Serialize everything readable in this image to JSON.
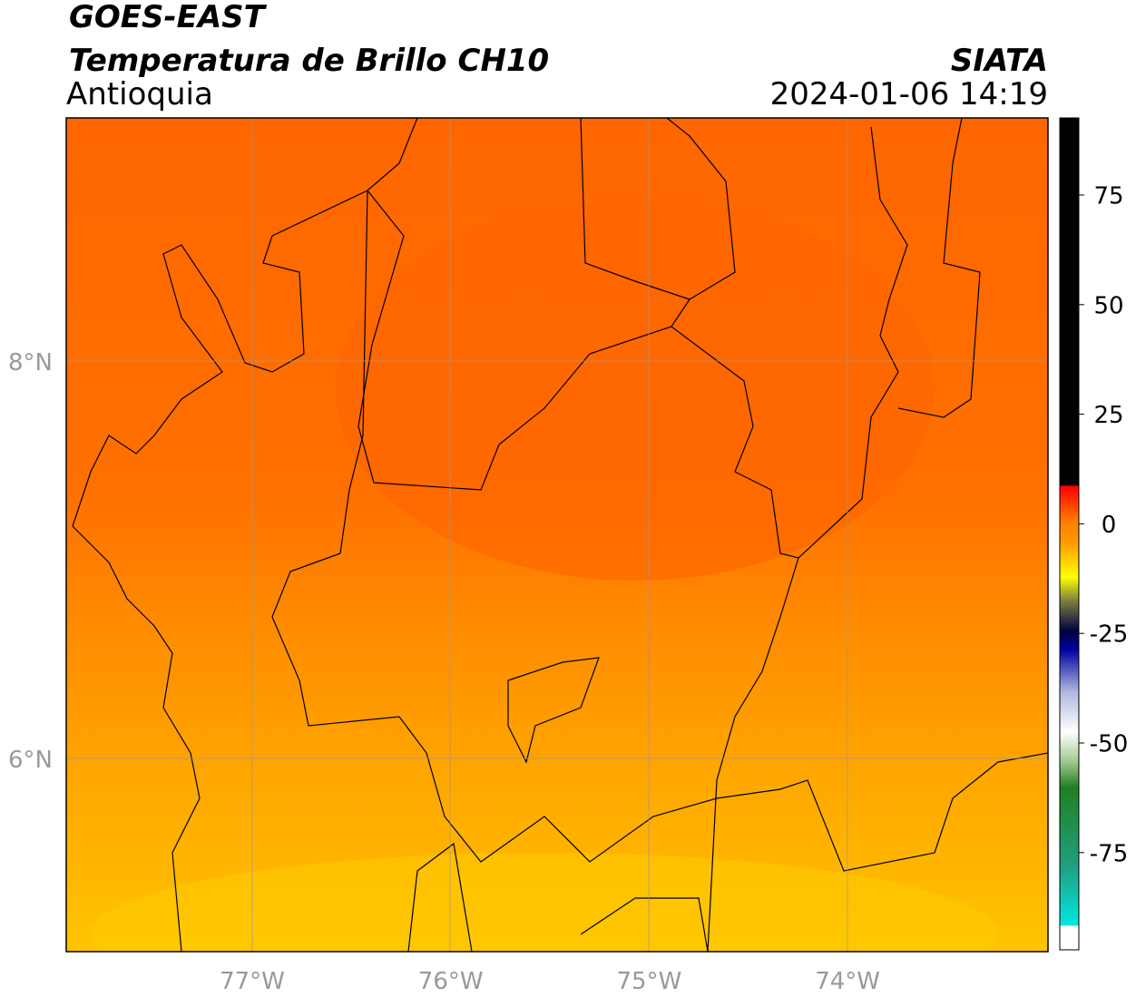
{
  "header": {
    "title": "GOES-EAST",
    "subtitle": "Temperatura de Brillo CH10",
    "region": "Antioquia",
    "source": "SIATA",
    "timestamp": "2024-01-06 14:19"
  },
  "map": {
    "lon_ticks": [
      "77°W",
      "76°W",
      "75°W",
      "74°W"
    ],
    "lat_ticks": [
      "8°N",
      "6°N"
    ]
  },
  "colorbar": {
    "ticks": [
      "75",
      "50",
      "25",
      "0",
      "-25",
      "-50",
      "-75"
    ]
  }
}
